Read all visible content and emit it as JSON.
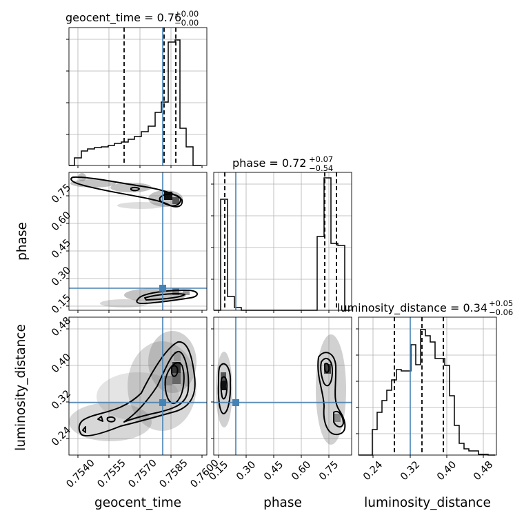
{
  "chart_data": {
    "type": "corner",
    "colors": {
      "truth": "#4682b4",
      "hist": "#000000",
      "quantile": "#000000",
      "points": "#808080"
    },
    "parameters": [
      {
        "key": "geocent_time",
        "label": "geocent_time",
        "range": [
          0.7535,
          0.7601
        ],
        "ticks": [
          0.754,
          0.7555,
          0.757,
          0.7585,
          0.76
        ],
        "tick_labels": [
          "0.7540",
          "0.7555",
          "0.7570",
          "0.7585",
          "0.7600"
        ],
        "truth": 0.758,
        "quantiles": [
          0.7564,
          0.7581,
          0.7587
        ],
        "title": {
          "main": "geocent_time = 0.76",
          "sup": "+0.00",
          "sub": "−0.00"
        },
        "hist": [
          0.1,
          0.12,
          0.13,
          0.13,
          0.14,
          0.14,
          0.15,
          0.16,
          0.19,
          0.22,
          0.3,
          0.38,
          0.5,
          0.7,
          0.94,
          1.0,
          0.3,
          0.12,
          0.0
        ]
      },
      {
        "key": "phase",
        "label": "phase",
        "range": [
          0.13,
          0.88
        ],
        "ticks": [
          0.15,
          0.3,
          0.45,
          0.6,
          0.75
        ],
        "tick_labels": [
          "0.15",
          "0.30",
          "0.45",
          "0.60",
          "0.75"
        ],
        "truth": 0.25,
        "quantiles": [
          0.19,
          0.72,
          0.79
        ],
        "title": {
          "main": "phase = 0.72",
          "sup": "+0.07",
          "sub": "−0.54"
        },
        "hist": [
          0,
          0.72,
          0.1,
          0,
          0,
          0,
          0,
          0,
          0,
          0,
          0,
          0,
          0,
          0,
          0,
          0.45,
          1.0,
          0.46,
          0.4,
          0.02
        ]
      },
      {
        "key": "luminosity_distance",
        "label": "luminosity_distance",
        "range": [
          0.2,
          0.5
        ],
        "ticks": [
          0.24,
          0.32,
          0.4,
          0.48
        ],
        "tick_labels": [
          "0.24",
          "0.32",
          "0.40",
          "0.48"
        ],
        "truth": 0.31,
        "quantiles": [
          0.28,
          0.34,
          0.39
        ],
        "title": {
          "main": "luminosity_distance = 0.34",
          "sup": "+0.05",
          "sub": "−0.06"
        },
        "hist": [
          0.0,
          0.16,
          0.27,
          0.42,
          0.5,
          0.58,
          0.67,
          0.66,
          0.96,
          0.91,
          0.78,
          0.72,
          0.67,
          0.45,
          0.18,
          0.07,
          0.04,
          0.02,
          0.01
        ]
      }
    ]
  }
}
